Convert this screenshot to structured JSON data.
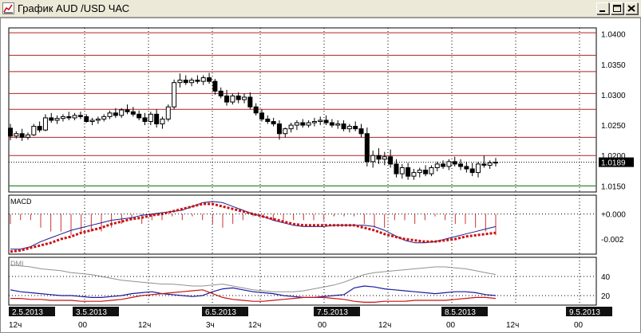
{
  "window": {
    "title": "График AUD /USD  ЧАС",
    "icon": "chart-line-icon",
    "buttons": [
      "minimize-icon",
      "maximize-icon",
      "close-icon"
    ]
  },
  "colors": {
    "background": "#ffffff",
    "grid": "#000000",
    "resistance": "#b22222",
    "support": "#2e8b2e",
    "candle": "#000000",
    "macd_line": "#1c1c8c",
    "macd_signal": "#cc1111",
    "macd_hist": "#cc3333",
    "dmi_adx": "#909090",
    "dmi_plus": "#1a1aa0",
    "dmi_minus": "#cc1111",
    "date_label_bg": "#111111",
    "date_label_text": "#ffffff"
  },
  "price_panel": {
    "y_ticks": [
      "1.0400",
      "1.0350",
      "1.0300",
      "1.0250",
      "1.0200",
      "1.0150"
    ],
    "current_price": "1.0189",
    "horizontal_levels": [
      1.0402,
      1.0365,
      1.0338,
      1.0302,
      1.0276,
      1.023,
      1.02
    ],
    "support_level": 1.015
  },
  "macd_panel": {
    "label": "MACD",
    "y_ticks": [
      "+0.000",
      "-0.002"
    ]
  },
  "dmi_panel": {
    "label": "DMI",
    "y_ticks": [
      "40",
      "20"
    ]
  },
  "time_axis": {
    "date_labels": [
      "2.5.2013",
      "3.5.2013",
      "6.5.2013",
      "7.5.2013",
      "8.5.2013",
      "9.5.2013"
    ],
    "hour_labels": [
      "12ч",
      "00",
      "12ч",
      "3ч",
      "12ч",
      "00",
      "12ч",
      "00",
      "12ч",
      "00"
    ]
  },
  "chart_data": {
    "type": "candlestick",
    "title": "График AUD /USD  ЧАС",
    "price_ylim": [
      1.014,
      1.041
    ],
    "series": [
      {
        "name": "AUD/USD",
        "type": "candlestick",
        "ohlc": [
          [
            1.0245,
            1.0252,
            1.0225,
            1.0232
          ],
          [
            1.0232,
            1.024,
            1.0228,
            1.0236
          ],
          [
            1.0236,
            1.0244,
            1.0224,
            1.023
          ],
          [
            1.023,
            1.0238,
            1.0226,
            1.0234
          ],
          [
            1.0234,
            1.0252,
            1.0232,
            1.0248
          ],
          [
            1.0248,
            1.0256,
            1.0238,
            1.0242
          ],
          [
            1.0242,
            1.0268,
            1.024,
            1.0262
          ],
          [
            1.0262,
            1.027,
            1.0254,
            1.0258
          ],
          [
            1.0258,
            1.0266,
            1.0252,
            1.0261
          ],
          [
            1.0261,
            1.0268,
            1.0256,
            1.0264
          ],
          [
            1.0264,
            1.0272,
            1.0258,
            1.0262
          ],
          [
            1.0262,
            1.027,
            1.0258,
            1.0266
          ],
          [
            1.0266,
            1.0272,
            1.026,
            1.0264
          ],
          [
            1.0264,
            1.0268,
            1.0254,
            1.0256
          ],
          [
            1.0256,
            1.0262,
            1.025,
            1.0258
          ],
          [
            1.0258,
            1.0264,
            1.0252,
            1.026
          ],
          [
            1.026,
            1.0268,
            1.0256,
            1.0264
          ],
          [
            1.0264,
            1.0274,
            1.026,
            1.027
          ],
          [
            1.027,
            1.0278,
            1.0262,
            1.0266
          ],
          [
            1.0266,
            1.0278,
            1.0262,
            1.0275
          ],
          [
            1.0275,
            1.0284,
            1.0268,
            1.0272
          ],
          [
            1.0272,
            1.028,
            1.0264,
            1.0268
          ],
          [
            1.0268,
            1.0274,
            1.0258,
            1.0262
          ],
          [
            1.0262,
            1.027,
            1.025,
            1.0256
          ],
          [
            1.0256,
            1.0272,
            1.025,
            1.0268
          ],
          [
            1.0268,
            1.0276,
            1.0246,
            1.0252
          ],
          [
            1.0252,
            1.0264,
            1.0244,
            1.026
          ],
          [
            1.026,
            1.0284,
            1.0256,
            1.028
          ],
          [
            1.028,
            1.0325,
            1.0276,
            1.032
          ],
          [
            1.032,
            1.0335,
            1.0312,
            1.0324
          ],
          [
            1.0324,
            1.0332,
            1.0316,
            1.032
          ],
          [
            1.032,
            1.0328,
            1.0314,
            1.0324
          ],
          [
            1.0324,
            1.0332,
            1.0318,
            1.0322
          ],
          [
            1.0322,
            1.0332,
            1.0316,
            1.0328
          ],
          [
            1.0328,
            1.0336,
            1.0318,
            1.0322
          ],
          [
            1.0322,
            1.0326,
            1.03,
            1.0306
          ],
          [
            1.0306,
            1.0312,
            1.0294,
            1.0298
          ],
          [
            1.0298,
            1.0308,
            1.0282,
            1.0288
          ],
          [
            1.0288,
            1.0302,
            1.0284,
            1.0298
          ],
          [
            1.0298,
            1.0304,
            1.0286,
            1.0292
          ],
          [
            1.0292,
            1.0302,
            1.0286,
            1.0296
          ],
          [
            1.0296,
            1.0304,
            1.0276,
            1.028
          ],
          [
            1.028,
            1.0286,
            1.0266,
            1.027
          ],
          [
            1.027,
            1.0276,
            1.0256,
            1.026
          ],
          [
            1.026,
            1.0266,
            1.0252,
            1.0256
          ],
          [
            1.0256,
            1.0262,
            1.0248,
            1.0252
          ],
          [
            1.0252,
            1.0258,
            1.0226,
            1.0236
          ],
          [
            1.0236,
            1.0246,
            1.023,
            1.0244
          ],
          [
            1.0244,
            1.0254,
            1.0238,
            1.025
          ],
          [
            1.025,
            1.0258,
            1.0242,
            1.0254
          ],
          [
            1.0254,
            1.026,
            1.0246,
            1.025
          ],
          [
            1.025,
            1.0258,
            1.0246,
            1.0254
          ],
          [
            1.0254,
            1.0262,
            1.0248,
            1.0256
          ],
          [
            1.0256,
            1.0264,
            1.025,
            1.0258
          ],
          [
            1.0258,
            1.0266,
            1.025,
            1.0254
          ],
          [
            1.0254,
            1.026,
            1.0246,
            1.025
          ],
          [
            1.025,
            1.0258,
            1.0244,
            1.0252
          ],
          [
            1.0252,
            1.0258,
            1.024,
            1.0244
          ],
          [
            1.0244,
            1.0252,
            1.0238,
            1.0248
          ],
          [
            1.0248,
            1.0256,
            1.024,
            1.0244
          ],
          [
            1.0244,
            1.0252,
            1.023,
            1.0236
          ],
          [
            1.0236,
            1.0246,
            1.0182,
            1.019
          ],
          [
            1.019,
            1.0208,
            1.018,
            1.02
          ],
          [
            1.02,
            1.0212,
            1.0186,
            1.0194
          ],
          [
            1.0194,
            1.0206,
            1.0184,
            1.0198
          ],
          [
            1.0198,
            1.021,
            1.018,
            1.0186
          ],
          [
            1.0186,
            1.0194,
            1.0164,
            1.017
          ],
          [
            1.017,
            1.0186,
            1.0162,
            1.018
          ],
          [
            1.018,
            1.0188,
            1.016,
            1.0166
          ],
          [
            1.0166,
            1.0178,
            1.016,
            1.0172
          ],
          [
            1.0172,
            1.018,
            1.0164,
            1.0176
          ],
          [
            1.0176,
            1.0184,
            1.0166,
            1.017
          ],
          [
            1.017,
            1.0184,
            1.0166,
            1.018
          ],
          [
            1.018,
            1.019,
            1.0174,
            1.0186
          ],
          [
            1.0186,
            1.0192,
            1.0178,
            1.0182
          ],
          [
            1.0182,
            1.0194,
            1.0176,
            1.019
          ],
          [
            1.019,
            1.0198,
            1.0182,
            1.0186
          ],
          [
            1.0186,
            1.0194,
            1.0176,
            1.0182
          ],
          [
            1.0182,
            1.019,
            1.0172,
            1.0178
          ],
          [
            1.0178,
            1.0188,
            1.0166,
            1.0172
          ],
          [
            1.0172,
            1.019,
            1.0164,
            1.0186
          ],
          [
            1.0186,
            1.02,
            1.018,
            1.0184
          ],
          [
            1.0184,
            1.0192,
            1.0178,
            1.0188
          ],
          [
            1.0188,
            1.0196,
            1.0182,
            1.0189
          ]
        ]
      }
    ],
    "macd": {
      "ylim": [
        -0.0032,
        0.0015
      ],
      "line": [
        -0.0028,
        -0.0028,
        -0.0026,
        -0.0022,
        -0.0019,
        -0.0016,
        -0.0013,
        -0.0011,
        -0.0009,
        -0.0007,
        -0.0005,
        -0.0004,
        -0.0003,
        -0.0001,
        0.0,
        0.0001,
        0.0002,
        0.0003,
        0.0006,
        0.0009,
        0.001,
        0.0009,
        0.0006,
        0.0003,
        0.0,
        -0.0002,
        -0.0005,
        -0.0007,
        -0.0009,
        -0.001,
        -0.001,
        -0.001,
        -0.0009,
        -0.0009,
        -0.0009,
        -0.0009,
        -0.001,
        -0.0013,
        -0.0017,
        -0.0021,
        -0.0023,
        -0.0023,
        -0.0022,
        -0.002,
        -0.0018,
        -0.0016,
        -0.0014,
        -0.0012,
        -0.001
      ],
      "signal": [
        -0.003,
        -0.0029,
        -0.0027,
        -0.0025,
        -0.0023,
        -0.002,
        -0.0018,
        -0.0015,
        -0.0013,
        -0.0011,
        -0.0008,
        -0.0006,
        -0.0004,
        -0.0003,
        -0.0001,
        0.0,
        0.0002,
        0.0004,
        0.0006,
        0.0008,
        0.0008,
        0.0006,
        0.0004,
        0.0002,
        0.0,
        -0.0002,
        -0.0004,
        -0.0006,
        -0.0008,
        -0.0009,
        -0.0009,
        -0.0009,
        -0.0009,
        -0.0009,
        -0.0009,
        -0.0011,
        -0.0013,
        -0.0016,
        -0.0018,
        -0.002,
        -0.0021,
        -0.0022,
        -0.0022,
        -0.0021,
        -0.002,
        -0.0018,
        -0.0017,
        -0.0016,
        -0.0015
      ]
    },
    "dmi": {
      "ylim": [
        10,
        60
      ],
      "adx": [
        52,
        51,
        50,
        48,
        47,
        46,
        44,
        43,
        42,
        40,
        38,
        36,
        35,
        34,
        33,
        32,
        32,
        31,
        30,
        30,
        31,
        32,
        30,
        28,
        26,
        25,
        24,
        24,
        24,
        25,
        27,
        29,
        31,
        34,
        38,
        42,
        44,
        45,
        46,
        47,
        48,
        49,
        50,
        50,
        49,
        48,
        46,
        44,
        42
      ],
      "plus_di": [
        26,
        24,
        23,
        22,
        21,
        20,
        20,
        19,
        18,
        18,
        19,
        20,
        22,
        23,
        24,
        22,
        21,
        20,
        19,
        20,
        24,
        27,
        28,
        26,
        24,
        23,
        22,
        20,
        19,
        18,
        18,
        19,
        20,
        21,
        28,
        30,
        29,
        27,
        26,
        25,
        24,
        23,
        22,
        23,
        24,
        24,
        23,
        21,
        20
      ],
      "minus_di": [
        17,
        17,
        16,
        16,
        15,
        15,
        15,
        14,
        14,
        14,
        15,
        16,
        18,
        20,
        21,
        22,
        23,
        24,
        25,
        26,
        22,
        18,
        16,
        15,
        14,
        14,
        15,
        16,
        17,
        18,
        18,
        18,
        17,
        16,
        14,
        13,
        13,
        14,
        14,
        14,
        15,
        15,
        15,
        15,
        16,
        17,
        18,
        18,
        17
      ]
    }
  }
}
